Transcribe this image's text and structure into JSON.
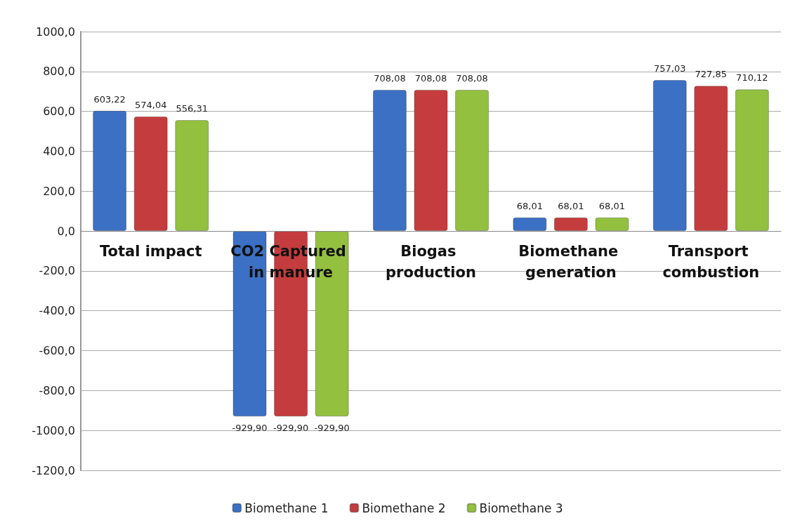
{
  "chart_data": {
    "type": "bar",
    "categories": [
      "Total impact",
      "CO2 Captured in manure",
      "Biogas production",
      "Biomethane generation",
      "Transport combustion"
    ],
    "series": [
      {
        "name": "Biomethane 1",
        "color": "#3b70c4",
        "values": [
          603.22,
          -929.9,
          708.08,
          68.01,
          757.03
        ]
      },
      {
        "name": "Biomethane 2",
        "color": "#c43c3d",
        "values": [
          574.04,
          -929.9,
          708.08,
          68.01,
          727.85
        ]
      },
      {
        "name": "Biomethane 3",
        "color": "#94c040",
        "values": [
          556.31,
          -929.9,
          708.08,
          68.01,
          710.12
        ]
      }
    ],
    "ylim": [
      -1200,
      1000
    ],
    "yticks": [
      {
        "value": -1200,
        "label": "-1200,0"
      },
      {
        "value": -1000,
        "label": "-1000,0"
      },
      {
        "value": -800,
        "label": "-800,0"
      },
      {
        "value": -600,
        "label": "-600,0"
      },
      {
        "value": -400,
        "label": "-400,0"
      },
      {
        "value": -200,
        "label": "-200,0"
      },
      {
        "value": 0,
        "label": "0,0"
      },
      {
        "value": 200,
        "label": "200,0"
      },
      {
        "value": 400,
        "label": "400,0"
      },
      {
        "value": 600,
        "label": "600,0"
      },
      {
        "value": 800,
        "label": "800,0"
      },
      {
        "value": 1000,
        "label": "1000,0"
      }
    ],
    "value_labels": [
      [
        "603,22",
        "-929,90",
        "708,08",
        "68,01",
        "757,03"
      ],
      [
        "574,04",
        "-929,90",
        "708,08",
        "68,01",
        "727,85"
      ],
      [
        "556,31",
        "-929,90",
        "708,08",
        "68,01",
        "710,12"
      ]
    ],
    "grid": "y",
    "legend": "bottom"
  }
}
